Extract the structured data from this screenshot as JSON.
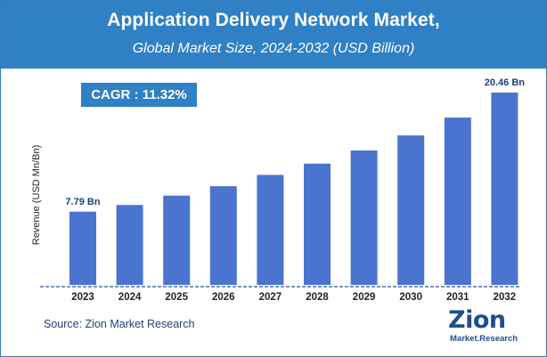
{
  "header": {
    "title": "Application Delivery Network Market,",
    "subtitle": "Global Market Size, 2024-2032 (USD Billion)"
  },
  "cagr_badge": "CAGR :  11.32%",
  "source": "Source: Zion Market Research",
  "logo": {
    "main": "Zion",
    "sub": "Market.Research"
  },
  "colors": {
    "bar": "#4a74cf",
    "header": "#2f80c5",
    "axis": "#4a6fb0"
  },
  "chart_data": {
    "type": "bar",
    "title": "Application Delivery Network Market,",
    "subtitle": "Global Market Size, 2024-2032 (USD Billion)",
    "xlabel": "",
    "ylabel": "Revenue (USD Mn/Bn)",
    "categories": [
      "2023",
      "2024",
      "2025",
      "2026",
      "2027",
      "2028",
      "2029",
      "2030",
      "2031",
      "2032"
    ],
    "values": [
      7.79,
      8.5,
      9.5,
      10.5,
      11.7,
      12.9,
      14.3,
      15.9,
      17.8,
      20.46
    ],
    "data_labels": {
      "0": "7.79 Bn",
      "9": "20.46 Bn"
    },
    "ylim": [
      0,
      21.5
    ],
    "grid": false,
    "legend": "none"
  }
}
